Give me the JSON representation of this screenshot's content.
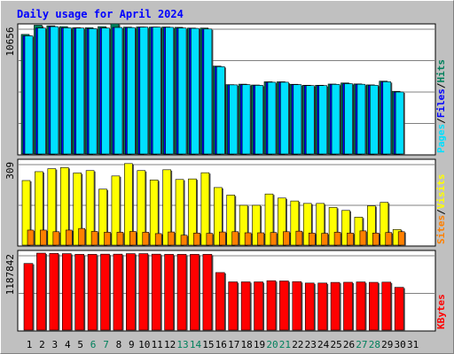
{
  "chart_data": {
    "type": "bar",
    "title": "Daily usage for April 2024",
    "categories": [
      "1",
      "2",
      "3",
      "4",
      "5",
      "6",
      "7",
      "8",
      "9",
      "10",
      "11",
      "12",
      "13",
      "14",
      "15",
      "16",
      "17",
      "18",
      "19",
      "20",
      "21",
      "22",
      "23",
      "24",
      "25",
      "26",
      "27",
      "28",
      "29",
      "30",
      "31"
    ],
    "weekend_days": [
      "6",
      "7",
      "13",
      "14",
      "20",
      "21",
      "27",
      "28"
    ],
    "panels": [
      {
        "id": "hits-files-pages",
        "max_label": "10656",
        "ymax": 10656,
        "right_label_parts": [
          "Pages",
          "Files",
          "Hits"
        ],
        "series": [
          {
            "name": "Hits",
            "color": "#00805c",
            "values": [
              10000,
              10770,
              10720,
              10650,
              10560,
              10560,
              10650,
              10890,
              10610,
              10620,
              10610,
              10620,
              10590,
              10530,
              10530,
              7350,
              5800,
              5840,
              5770,
              6040,
              6040,
              5830,
              5750,
              5750,
              5850,
              5940,
              5860,
              5780,
              6090,
              5240,
              null
            ]
          },
          {
            "name": "Files",
            "color": "#0000ff",
            "values": [
              9880,
              10530,
              10650,
              10550,
              10530,
              10480,
              10530,
              10580,
              10570,
              10610,
              10610,
              10590,
              10530,
              10500,
              10450,
              7300,
              5780,
              5800,
              5740,
              6000,
              6000,
              5800,
              5720,
              5720,
              5820,
              5880,
              5830,
              5750,
              6040,
              5180,
              null
            ]
          },
          {
            "name": "Pages",
            "color": "#00e0ff",
            "values": [
              9880,
              10530,
              10650,
              10550,
              10530,
              10480,
              10530,
              10580,
              10570,
              10610,
              10610,
              10590,
              10530,
              10500,
              10450,
              7300,
              5780,
              5800,
              5740,
              6000,
              6000,
              5800,
              5720,
              5720,
              5820,
              5880,
              5830,
              5750,
              6040,
              5180,
              null
            ]
          }
        ]
      },
      {
        "id": "visits-sites",
        "max_label": "309",
        "ymax": 309,
        "right_label_parts": [
          "Sites",
          "Visits"
        ],
        "series": [
          {
            "name": "Visits",
            "color": "#ffff00",
            "values": [
              240,
              273,
              284,
              288,
              268,
              277,
              208,
              257,
              303,
              277,
              242,
              280,
              244,
              246,
              269,
              214,
              186,
              148,
              148,
              190,
              175,
              164,
              155,
              155,
              140,
              129,
              104,
              146,
              159,
              58,
              null
            ]
          },
          {
            "name": "Sites",
            "color": "#ff8000",
            "values": [
              56,
              56,
              50,
              56,
              62,
              51,
              48,
              48,
              51,
              48,
              43,
              49,
              37,
              45,
              44,
              49,
              50,
              46,
              46,
              47,
              50,
              52,
              45,
              44,
              48,
              45,
              53,
              45,
              47,
              50,
              null
            ]
          }
        ]
      },
      {
        "id": "kbytes",
        "max_label": "1187842",
        "ymax": 1187842,
        "right_label_parts": [
          "KBytes"
        ],
        "series": [
          {
            "name": "KBytes",
            "color": "#ff0000",
            "values": [
              1028000,
              1187842,
              1183000,
              1180000,
              1169000,
              1169000,
              1172000,
              1172000,
              1180000,
              1180000,
              1172000,
              1169000,
              1169000,
              1169000,
              1169000,
              888000,
              744000,
              744000,
              744000,
              762000,
              758000,
              748000,
              726000,
              726000,
              736000,
              738000,
              743000,
              737000,
              740000,
              660000,
              null
            ]
          }
        ]
      }
    ]
  },
  "colors": {
    "background": "#c0c0c0",
    "panel_bg": "#ffffff",
    "grid": "#808080",
    "title": "#0000ff",
    "tick_weekday": "#000000",
    "tick_weekend": "#00805c"
  }
}
